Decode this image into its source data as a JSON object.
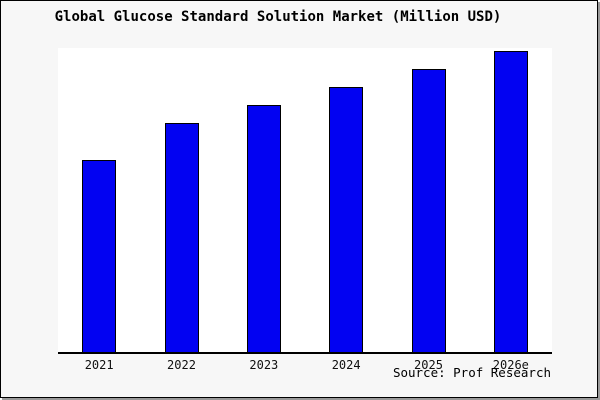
{
  "window": {
    "background": "#f7f7f7"
  },
  "chart_data": {
    "type": "bar",
    "title": "Global Glucose Standard Solution Market (Million USD)",
    "categories": [
      "2021",
      "2022",
      "2023",
      "2024",
      "2025",
      "2026e"
    ],
    "values": [
      63.8,
      76.1,
      82.1,
      88.2,
      94.0,
      100.0
    ],
    "units": "relative index (no y-axis tick labels shown in image)",
    "xlabel": "",
    "ylabel": "",
    "ylim": [
      0,
      101
    ],
    "grid": false,
    "legend": "none",
    "bar_fill": "#0202f2",
    "bar_border": "#000000",
    "plot_background": "#ffffff",
    "axis_color": "#000000",
    "source_label": "Source: Prof Research"
  }
}
